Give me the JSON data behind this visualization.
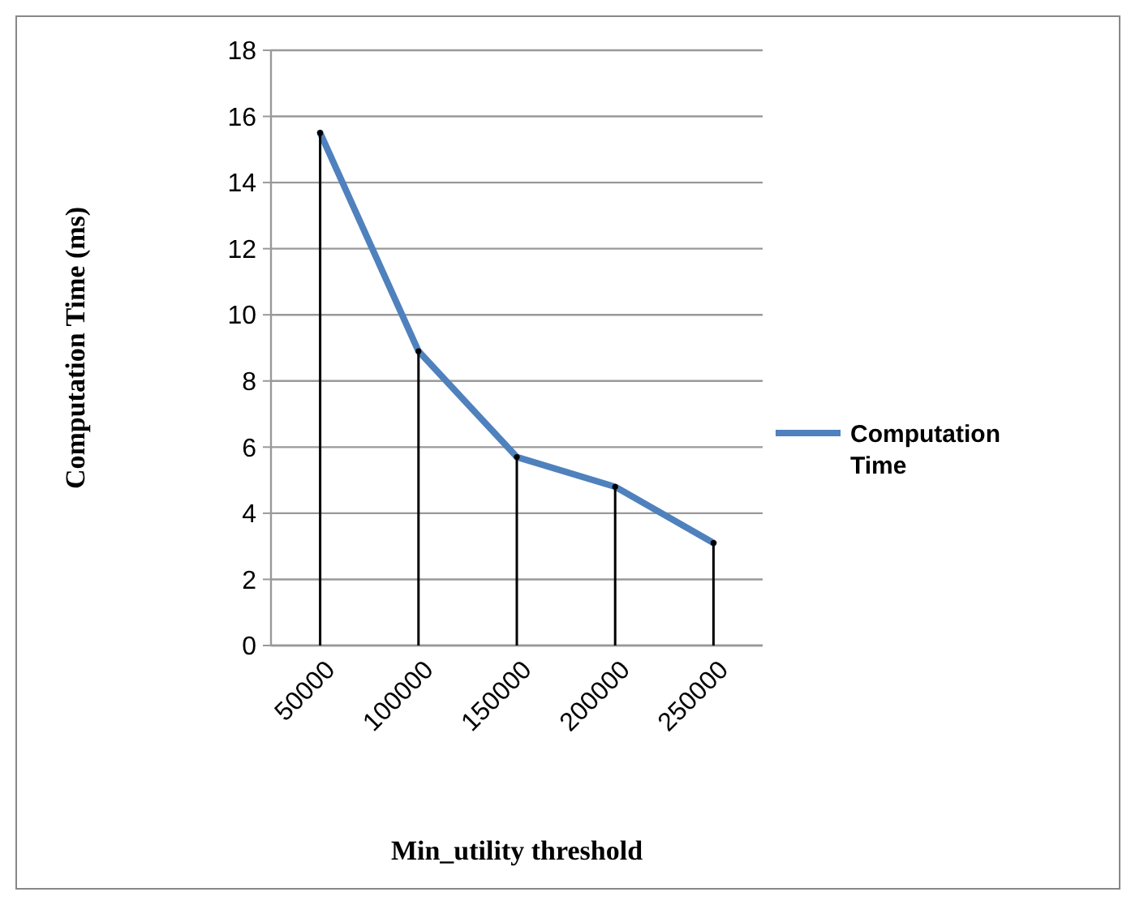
{
  "chart_data": {
    "type": "line",
    "xlabel": "Min_utility threshold",
    "ylabel": "Computation Time (ms)",
    "categories": [
      "50000",
      "100000",
      "150000",
      "200000",
      "250000"
    ],
    "series": [
      {
        "name": "Computation Time",
        "color": "#4f81bd",
        "values": [
          15.5,
          8.9,
          5.7,
          4.8,
          3.1
        ]
      },
      {
        "type": "lollipop",
        "marker": "circle",
        "color": "#000000",
        "values": [
          15.5,
          8.9,
          5.7,
          4.8,
          3.1
        ]
      }
    ],
    "ylim": [
      0,
      18
    ],
    "yticks": [
      0,
      2,
      4,
      6,
      8,
      10,
      12,
      14,
      16,
      18
    ],
    "grid": "y",
    "legend": "right",
    "marker": "none"
  }
}
